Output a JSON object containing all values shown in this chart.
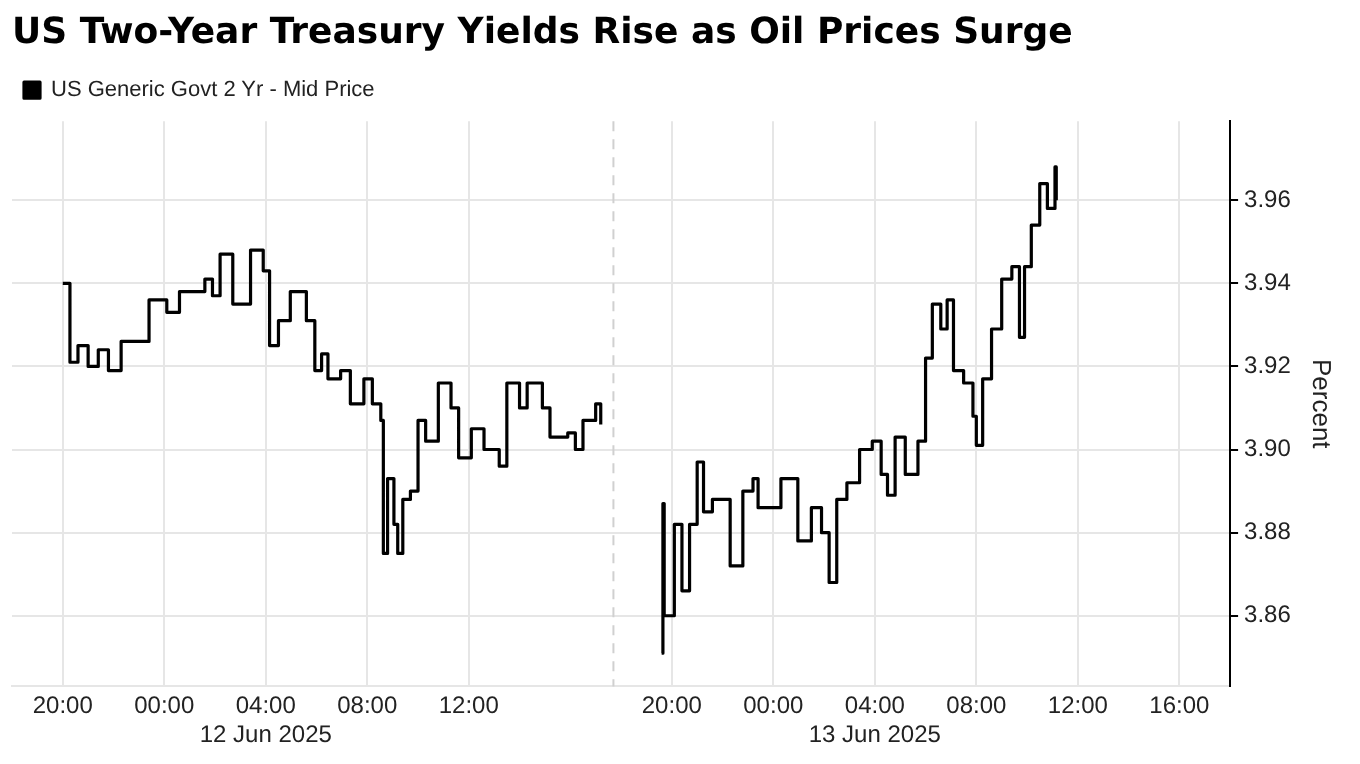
{
  "chart_data": {
    "type": "step",
    "title": "US Two-Year Treasury Yields Rise as Oil Prices Surge",
    "ylabel": "Percent",
    "legend": "top left",
    "grid": true,
    "marker": "none",
    "line_style": "solid",
    "xlim": [
      "2025-06-11T18:00",
      "2025-06-13T18:00"
    ],
    "ylim": [
      3.843,
      3.979
    ],
    "xticks": [
      {
        "value": "2025-06-11T20:00",
        "label": "20:00"
      },
      {
        "value": "2025-06-12T00:00",
        "label": "00:00"
      },
      {
        "value": "2025-06-12T04:00",
        "label": "04:00\n12 Jun 2025"
      },
      {
        "value": "2025-06-12T08:00",
        "label": "08:00"
      },
      {
        "value": "2025-06-12T12:00",
        "label": "12:00"
      },
      {
        "value": "2025-06-12T20:00",
        "label": "20:00"
      },
      {
        "value": "2025-06-13T00:00",
        "label": "00:00"
      },
      {
        "value": "2025-06-13T04:00",
        "label": "04:00\n13 Jun 2025"
      },
      {
        "value": "2025-06-13T08:00",
        "label": "08:00"
      },
      {
        "value": "2025-06-13T12:00",
        "label": "12:00"
      },
      {
        "value": "2025-06-13T16:00",
        "label": "16:00"
      }
    ],
    "yticks": [
      {
        "value": 3.86,
        "label": "3.86"
      },
      {
        "value": 3.88,
        "label": "3.88"
      },
      {
        "value": 3.9,
        "label": "3.90"
      },
      {
        "value": 3.92,
        "label": "3.92"
      },
      {
        "value": 3.94,
        "label": "3.94"
      },
      {
        "value": 3.96,
        "label": "3.96"
      }
    ],
    "ref_lines": [
      {
        "axis": "x",
        "value": "2025-06-12T17:42",
        "color": "#d0d0d0",
        "line_style": "dashed"
      }
    ],
    "series": [
      {
        "name": "US Generic Govt 2 Yr - Mid Price",
        "color": "#000000",
        "x": [
          "2025-06-11T20:00",
          "2025-06-11T20:06",
          "2025-06-11T20:17",
          "2025-06-11T20:36",
          "2025-06-11T21:00",
          "2025-06-11T21:24",
          "2025-06-11T21:48",
          "2025-06-11T22:18",
          "2025-06-11T22:54",
          "2025-06-11T23:24",
          "2025-06-12T00:06",
          "2025-06-12T00:36",
          "2025-06-12T01:24",
          "2025-06-12T01:36",
          "2025-06-12T01:54",
          "2025-06-12T02:12",
          "2025-06-12T02:42",
          "2025-06-12T03:24",
          "2025-06-12T03:54",
          "2025-06-12T04:09",
          "2025-06-12T04:30",
          "2025-06-12T04:58",
          "2025-06-12T05:36",
          "2025-06-12T05:56",
          "2025-06-12T06:12",
          "2025-06-12T06:27",
          "2025-06-12T06:57",
          "2025-06-12T07:20",
          "2025-06-12T07:52",
          "2025-06-12T08:12",
          "2025-06-12T08:32",
          "2025-06-12T08:38",
          "2025-06-12T08:48",
          "2025-06-12T09:03",
          "2025-06-12T09:12",
          "2025-06-12T09:24",
          "2025-06-12T09:42",
          "2025-06-12T10:00",
          "2025-06-12T10:18",
          "2025-06-12T10:48",
          "2025-06-12T11:18",
          "2025-06-12T11:36",
          "2025-06-12T12:06",
          "2025-06-12T12:36",
          "2025-06-12T13:12",
          "2025-06-12T13:30",
          "2025-06-12T14:00",
          "2025-06-12T14:18",
          "2025-06-12T14:54",
          "2025-06-12T15:12",
          "2025-06-12T15:54",
          "2025-06-12T16:12",
          "2025-06-12T16:30",
          "2025-06-12T17:00",
          "2025-06-12T17:12",
          "2025-06-12T18:00",
          "2025-06-12T19:36",
          "2025-06-12T19:39",
          "2025-06-12T19:42",
          "2025-06-12T20:06",
          "2025-06-12T20:24",
          "2025-06-12T20:42",
          "2025-06-12T21:00",
          "2025-06-12T21:15",
          "2025-06-12T21:36",
          "2025-06-12T22:18",
          "2025-06-12T22:48",
          "2025-06-12T23:12",
          "2025-06-12T23:24",
          "2025-06-13T00:18",
          "2025-06-13T00:58",
          "2025-06-13T01:30",
          "2025-06-13T01:54",
          "2025-06-13T02:12",
          "2025-06-13T02:30",
          "2025-06-13T02:54",
          "2025-06-13T03:24",
          "2025-06-13T03:54",
          "2025-06-13T04:15",
          "2025-06-13T04:30",
          "2025-06-13T04:48",
          "2025-06-13T05:12",
          "2025-06-13T05:42",
          "2025-06-13T06:00",
          "2025-06-13T06:16",
          "2025-06-13T06:36",
          "2025-06-13T06:51",
          "2025-06-13T07:06",
          "2025-06-13T07:30",
          "2025-06-13T07:52",
          "2025-06-13T08:00",
          "2025-06-13T08:15",
          "2025-06-13T08:36",
          "2025-06-13T09:00",
          "2025-06-13T09:24",
          "2025-06-13T09:42",
          "2025-06-13T09:54",
          "2025-06-13T10:10",
          "2025-06-13T10:30",
          "2025-06-13T10:48",
          "2025-06-13T11:06",
          "2025-06-13T11:09"
        ],
        "values": [
          3.94,
          3.94,
          3.921,
          3.925,
          3.92,
          3.924,
          3.919,
          3.926,
          3.926,
          3.936,
          3.933,
          3.938,
          3.938,
          3.941,
          3.937,
          3.947,
          3.935,
          3.948,
          3.943,
          3.925,
          3.931,
          3.938,
          3.931,
          3.919,
          3.923,
          3.917,
          3.919,
          3.911,
          3.917,
          3.911,
          3.907,
          3.875,
          3.893,
          3.882,
          3.875,
          3.888,
          3.89,
          3.907,
          3.902,
          3.916,
          3.91,
          3.898,
          3.905,
          3.9,
          3.896,
          3.916,
          3.91,
          3.916,
          3.91,
          3.903,
          3.904,
          3.9,
          3.907,
          3.911,
          3.906,
          null,
          3.851,
          3.887,
          3.86,
          3.882,
          3.866,
          3.882,
          3.897,
          3.885,
          3.888,
          3.872,
          3.89,
          3.893,
          3.886,
          3.893,
          3.878,
          3.886,
          3.88,
          3.868,
          3.888,
          3.892,
          3.9,
          3.902,
          3.894,
          3.889,
          3.903,
          3.894,
          3.902,
          3.922,
          3.935,
          3.929,
          3.936,
          3.919,
          3.916,
          3.908,
          3.901,
          3.917,
          3.929,
          3.941,
          3.944,
          3.927,
          3.944,
          3.954,
          3.964,
          3.958,
          3.968,
          3.96
        ]
      }
    ]
  }
}
